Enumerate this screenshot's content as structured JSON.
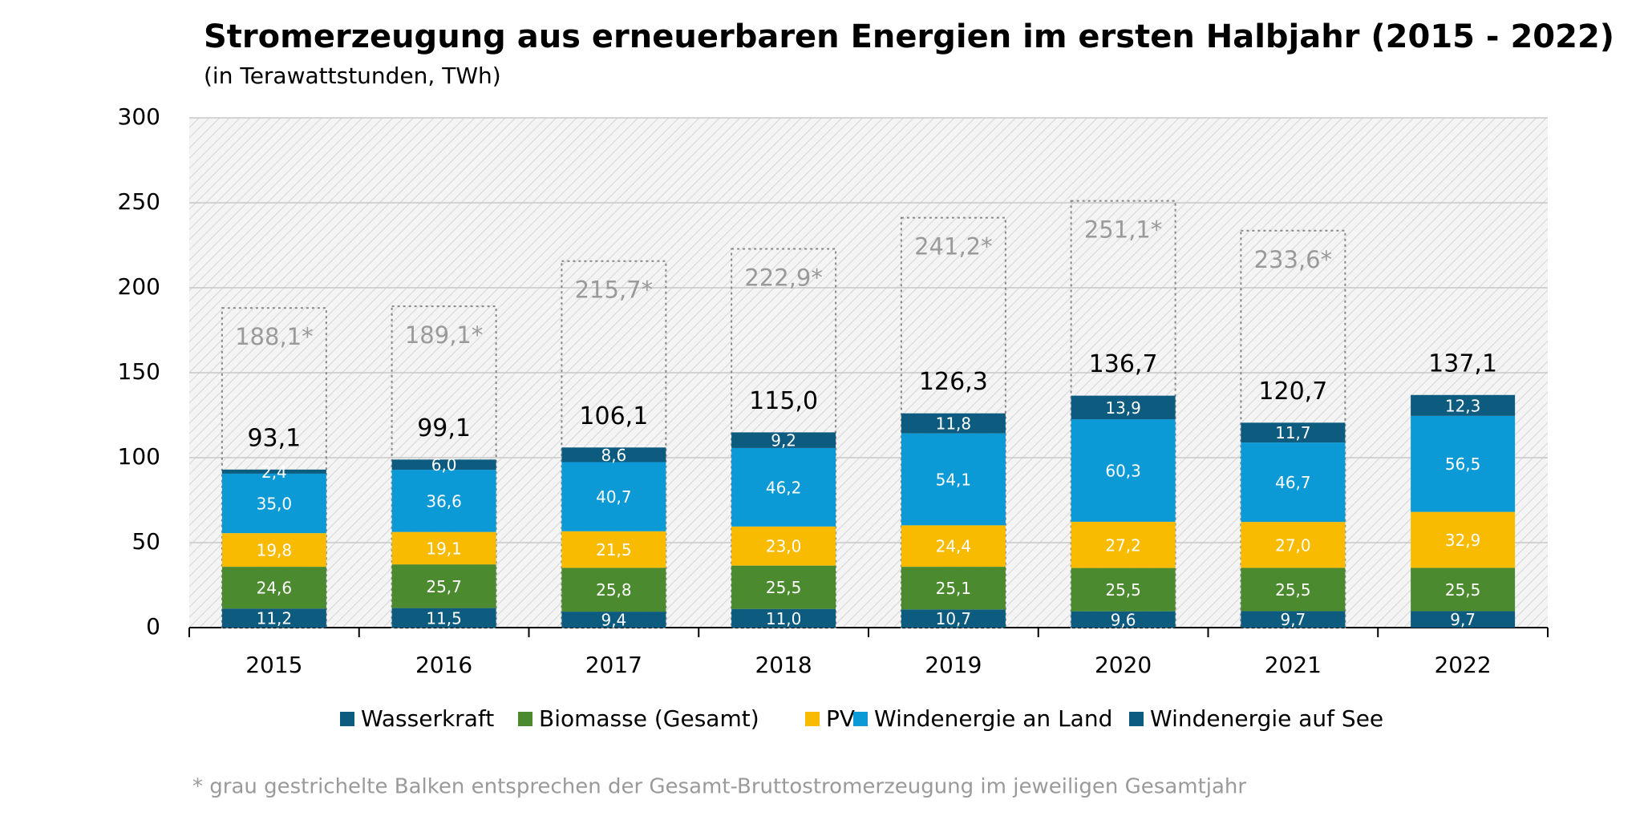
{
  "chart_data": {
    "type": "stacked-bar",
    "title": "Stromerzeugung aus erneuerbaren Energien im ersten Halbjahr (2015 - 2022)",
    "subtitle": "(in Terawattstunden, TWh)",
    "footnote": "* grau gestrichelte Balken entsprechen der Gesamt-Bruttostromerzeugung im jeweiligen Gesamtjahr",
    "categories": [
      "2015",
      "2016",
      "2017",
      "2018",
      "2019",
      "2020",
      "2021",
      "2022"
    ],
    "ylim": [
      0,
      300
    ],
    "yticks": [
      0,
      50,
      100,
      150,
      200,
      250,
      300
    ],
    "grid": true,
    "series": [
      {
        "name": "Wasserkraft",
        "color": "#0d5c80",
        "values": [
          11.2,
          11.5,
          9.4,
          11.0,
          10.7,
          9.6,
          9.7,
          9.7
        ],
        "value_labels": [
          "11,2",
          "11,5",
          "9,4",
          "11,0",
          "10,7",
          "9,6",
          "9,7",
          "9,7"
        ]
      },
      {
        "name": "Biomasse (Gesamt)",
        "color": "#4b8a2e",
        "values": [
          24.6,
          25.7,
          25.8,
          25.5,
          25.1,
          25.5,
          25.5,
          25.5
        ],
        "value_labels": [
          "24,6",
          "25,7",
          "25,8",
          "25,5",
          "25,1",
          "25,5",
          "25,5",
          "25,5"
        ]
      },
      {
        "name": "PV",
        "color": "#f9bb00",
        "values": [
          19.8,
          19.1,
          21.5,
          23.0,
          24.4,
          27.2,
          27.0,
          32.9
        ],
        "value_labels": [
          "19,8",
          "19,1",
          "21,5",
          "23,0",
          "24,4",
          "27,2",
          "27,0",
          "32,9"
        ]
      },
      {
        "name": "Windenergie an Land",
        "color": "#0b9ad5",
        "values": [
          35.0,
          36.6,
          40.7,
          46.2,
          54.1,
          60.3,
          46.7,
          56.5
        ],
        "value_labels": [
          "35,0",
          "36,6",
          "40,7",
          "46,2",
          "54,1",
          "60,3",
          "46,7",
          "56,5"
        ]
      },
      {
        "name": "Windenergie auf See",
        "color": "#0d5c80",
        "values": [
          2.4,
          6.0,
          8.6,
          9.2,
          11.8,
          13.9,
          11.7,
          12.3
        ],
        "value_labels": [
          "2,4",
          "6,0",
          "8,6",
          "9,2",
          "11,8",
          "13,9",
          "11,7",
          "12,3"
        ]
      }
    ],
    "totals": [
      93.1,
      99.1,
      106.1,
      115.0,
      126.3,
      136.7,
      120.7,
      137.1
    ],
    "total_labels": [
      "93,1",
      "99,1",
      "106,1",
      "115,0",
      "126,3",
      "136,7",
      "120,7",
      "137,1"
    ],
    "annual_totals": [
      188.1,
      189.1,
      215.7,
      222.9,
      241.2,
      251.1,
      233.6,
      null
    ],
    "annual_total_labels": [
      "188,1*",
      "189,1*",
      "215,7*",
      "222,9*",
      "241,2*",
      "251,1*",
      "233,6*",
      null
    ]
  }
}
